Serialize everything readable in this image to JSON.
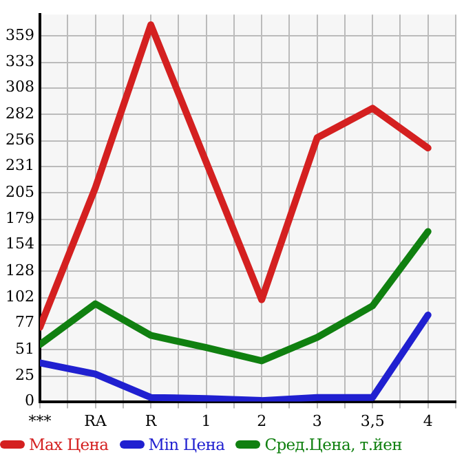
{
  "chart_data": {
    "type": "line",
    "categories": [
      "***",
      "RA",
      "R",
      "1",
      "2",
      "3",
      "3,5",
      "4"
    ],
    "series": [
      {
        "name": "Max Цена",
        "color": "#d42020",
        "values": [
          73,
          210,
          370,
          235,
          100,
          259,
          288,
          249
        ]
      },
      {
        "name": "Min Цена",
        "color": "#2020d0",
        "values": [
          38,
          27,
          4,
          3,
          1,
          4,
          4,
          85
        ]
      },
      {
        "name": "Сред.Цена, т.йен",
        "color": "#108010",
        "values": [
          56,
          96,
          65,
          53,
          40,
          63,
          94,
          167
        ]
      }
    ],
    "ylim": [
      0,
      380
    ],
    "yticks": [
      0,
      25,
      51,
      77,
      102,
      128,
      154,
      179,
      205,
      231,
      256,
      282,
      308,
      333,
      359
    ],
    "grid": true,
    "legend": "bottom",
    "marker": "none",
    "line_style": "solid"
  }
}
